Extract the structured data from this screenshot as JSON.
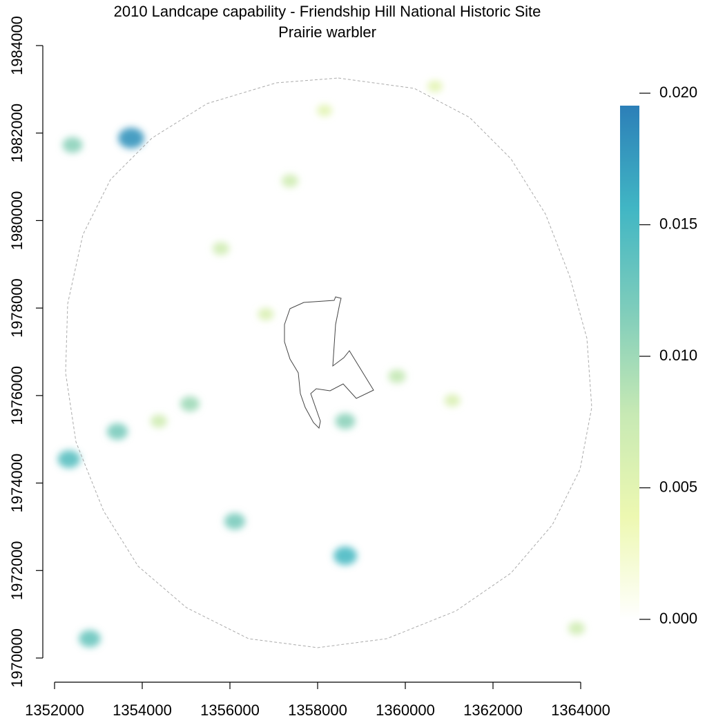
{
  "chart_data": {
    "type": "raster",
    "title": "2010 Landcape capability - Friendship Hill National Historic Site",
    "subtitle": "Prairie warbler",
    "xlim": [
      1352000,
      1364000
    ],
    "xticks": [
      1352000,
      1354000,
      1356000,
      1358000,
      1360000,
      1362000,
      1364000
    ],
    "ylim": [
      1970000,
      1984000
    ],
    "yticks": [
      1970000,
      1972000,
      1974000,
      1976000,
      1978000,
      1980000,
      1982000,
      1984000
    ],
    "zlim": [
      0,
      0.0195
    ],
    "zticks": [
      {
        "value": 0,
        "label": "0.000"
      },
      {
        "value": 0.005,
        "label": "0.005"
      },
      {
        "value": 0.01,
        "label": "0.010"
      },
      {
        "value": 0.015,
        "label": "0.015"
      },
      {
        "value": 0.02,
        "label": "0.020"
      }
    ],
    "colorscale": [
      "#ffffff",
      "#edf8b1",
      "#c7e9b4",
      "#7fcdbb",
      "#41b6c4",
      "#2c7fb8"
    ],
    "x": [
      1353748,
      1352409,
      1358630,
      1356110,
      1353433,
      1355087,
      1352803,
      1352331,
      1358630,
      1357370,
      1355795,
      1356819,
      1359811,
      1354378,
      1358157,
      1360677,
      1363906,
      1361071
    ],
    "y": [
      1981885,
      1981727,
      1972337,
      1973125,
      1975177,
      1975809,
      1970443,
      1974546,
      1975414,
      1980907,
      1979360,
      1977860,
      1976440,
      1975414,
      1982516,
      1983069,
      1970679,
      1975888
    ],
    "values": [
      0.018,
      0.011,
      0.015,
      0.012,
      0.012,
      0.01,
      0.013,
      0.014,
      0.011,
      0.007,
      0.007,
      0.006,
      0.008,
      0.007,
      0.005,
      0.005,
      0.007,
      0.006
    ]
  }
}
